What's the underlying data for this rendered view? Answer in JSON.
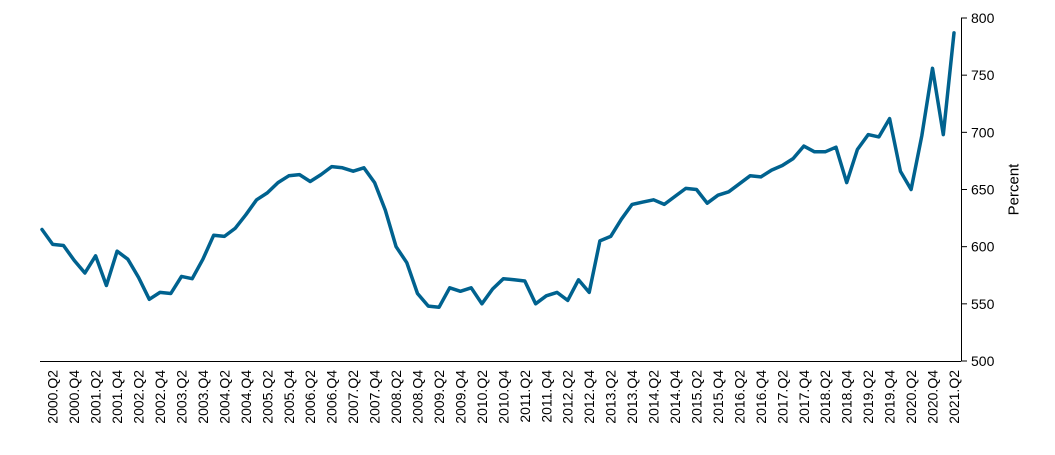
{
  "chart_data": {
    "type": "line",
    "title": "",
    "xlabel": "",
    "ylabel": "Percent",
    "ylim": [
      500,
      800
    ],
    "yticks": [
      500,
      550,
      600,
      650,
      700,
      750,
      800
    ],
    "y_axis_side": "right",
    "grid": false,
    "legend": "none",
    "line_color": "#00628f",
    "x": [
      "2000.Q1",
      "2000.Q2",
      "2000.Q3",
      "2000.Q4",
      "2001.Q1",
      "2001.Q2",
      "2001.Q3",
      "2001.Q4",
      "2002.Q1",
      "2002.Q2",
      "2002.Q3",
      "2002.Q4",
      "2003.Q1",
      "2003.Q2",
      "2003.Q3",
      "2003.Q4",
      "2004.Q1",
      "2004.Q2",
      "2004.Q3",
      "2004.Q4",
      "2005.Q1",
      "2005.Q2",
      "2005.Q3",
      "2005.Q4",
      "2006.Q1",
      "2006.Q2",
      "2006.Q3",
      "2006.Q4",
      "2007.Q1",
      "2007.Q2",
      "2007.Q3",
      "2007.Q4",
      "2008.Q1",
      "2008.Q2",
      "2008.Q3",
      "2008.Q4",
      "2009.Q1",
      "2009.Q2",
      "2009.Q3",
      "2009.Q4",
      "2010.Q1",
      "2010.Q2",
      "2010.Q3",
      "2010.Q4",
      "2011.Q1",
      "2011.Q2",
      "2011.Q3",
      "2011.Q4",
      "2012.Q1",
      "2012.Q2",
      "2012.Q3",
      "2012.Q4",
      "2013.Q1",
      "2013.Q2",
      "2013.Q3",
      "2013.Q4",
      "2014.Q1",
      "2014.Q2",
      "2014.Q3",
      "2014.Q4",
      "2015.Q1",
      "2015.Q2",
      "2015.Q3",
      "2015.Q4",
      "2016.Q1",
      "2016.Q2",
      "2016.Q3",
      "2016.Q4",
      "2017.Q1",
      "2017.Q2",
      "2017.Q3",
      "2017.Q4",
      "2018.Q1",
      "2018.Q2",
      "2018.Q3",
      "2018.Q4",
      "2019.Q1",
      "2019.Q2",
      "2019.Q3",
      "2019.Q4",
      "2020.Q1",
      "2020.Q2",
      "2020.Q3",
      "2020.Q4",
      "2021.Q1",
      "2021.Q2"
    ],
    "xtick_labels": [
      "2000.Q2",
      "2000.Q4",
      "2001.Q2",
      "2001.Q4",
      "2002.Q2",
      "2002.Q4",
      "2003.Q2",
      "2003.Q4",
      "2004.Q2",
      "2004.Q4",
      "2005.Q2",
      "2005.Q4",
      "2006.Q2",
      "2006.Q4",
      "2007.Q2",
      "2007.Q4",
      "2008.Q2",
      "2008.Q4",
      "2009.Q2",
      "2009.Q4",
      "2010.Q2",
      "2010.Q4",
      "2011.Q2",
      "2011.Q4",
      "2012.Q2",
      "2012.Q4",
      "2013.Q2",
      "2013.Q4",
      "2014.Q2",
      "2014.Q4",
      "2015.Q2",
      "2015.Q4",
      "2016.Q2",
      "2016.Q4",
      "2017.Q2",
      "2017.Q4",
      "2018.Q2",
      "2018.Q4",
      "2019.Q2",
      "2019.Q4",
      "2020.Q2",
      "2020.Q4",
      "2021.Q2"
    ],
    "values": [
      615,
      602,
      601,
      588,
      577,
      592,
      566,
      596,
      589,
      573,
      554,
      560,
      559,
      574,
      572,
      589,
      610,
      609,
      616,
      628,
      641,
      647,
      656,
      662,
      663,
      657,
      663,
      670,
      669,
      666,
      669,
      656,
      632,
      600,
      586,
      559,
      548,
      547,
      564,
      561,
      564,
      550,
      563,
      572,
      571,
      570,
      550,
      557,
      560,
      553,
      571,
      560,
      605,
      609,
      624,
      637,
      639,
      641,
      637,
      644,
      651,
      650,
      638,
      645,
      648,
      655,
      662,
      661,
      667,
      671,
      677,
      688,
      683,
      683,
      687,
      656,
      685,
      698,
      696,
      712,
      666,
      650,
      697,
      756,
      698,
      787
    ]
  }
}
